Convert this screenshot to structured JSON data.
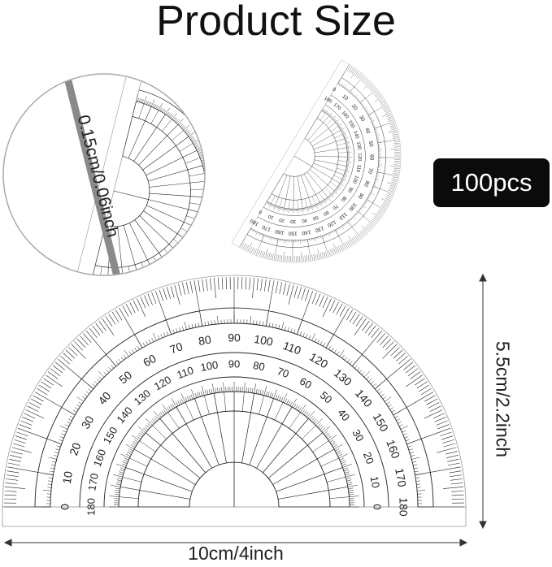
{
  "title": "Product Size",
  "badge": "100pcs",
  "dimensions": {
    "width": "10cm/4inch",
    "height": "5.5cm/2.2inch",
    "thickness": "0.15cm/0.06inch"
  },
  "protractor": {
    "outer_scale": [
      "0",
      "10",
      "20",
      "30",
      "40",
      "50",
      "60",
      "70",
      "80",
      "90",
      "100",
      "110",
      "120",
      "130",
      "140",
      "150",
      "160",
      "170",
      "180"
    ],
    "inner_scale": [
      "180",
      "170",
      "160",
      "150",
      "140",
      "130",
      "120",
      "110",
      "100",
      "90",
      "80",
      "70",
      "60",
      "50",
      "40",
      "30",
      "20",
      "10",
      "0"
    ]
  },
  "colors": {
    "line": "#222222",
    "badge": "#0b0b0b",
    "edge": "#8a8a8a"
  }
}
